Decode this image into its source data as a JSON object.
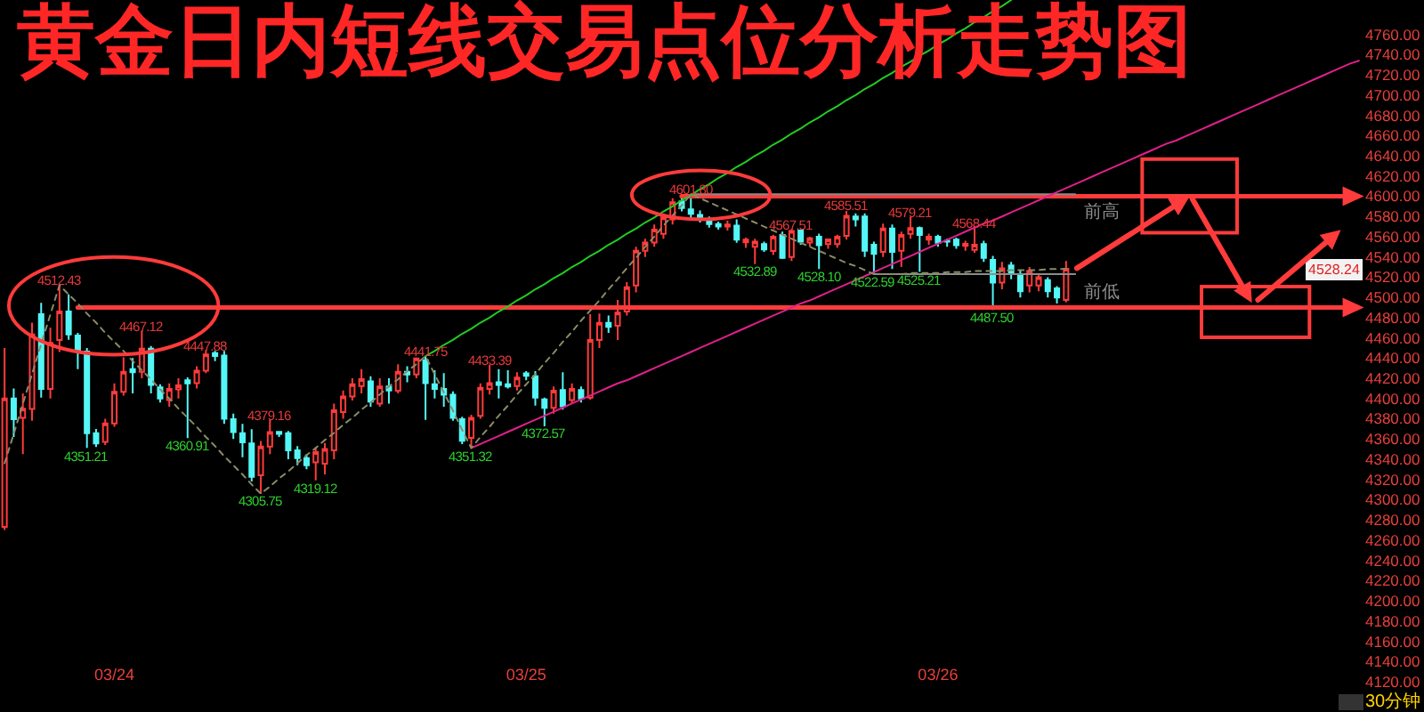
{
  "chart_data": {
    "type": "candlestick",
    "title": "黄金日内短线交易点位分析走势图",
    "categories": [
      null,
      null,
      null,
      null,
      null,
      null,
      null,
      null,
      null,
      null,
      null,
      null,
      "03/24",
      null,
      null,
      null,
      null,
      null,
      null,
      null,
      null,
      null,
      null,
      null,
      null,
      null,
      null,
      null,
      null,
      null,
      null,
      null,
      null,
      null,
      null,
      null,
      null,
      null,
      null,
      null,
      null,
      null,
      null,
      null,
      null,
      null,
      null,
      null,
      null,
      null,
      null,
      null,
      null,
      null,
      null,
      null,
      null,
      "03/25",
      null,
      null,
      null,
      null,
      null,
      null,
      null,
      null,
      null,
      null,
      null,
      null,
      null,
      null,
      null,
      null,
      null,
      null,
      null,
      null,
      null,
      null,
      null,
      null,
      null,
      null,
      null,
      null,
      null,
      null,
      null,
      null,
      null,
      null,
      null,
      null,
      null,
      null,
      null,
      null,
      null,
      null,
      null,
      null,
      "03/26",
      null,
      null,
      null,
      null,
      null,
      null,
      null,
      null,
      null,
      null,
      null,
      null,
      null,
      null,
      null,
      null,
      null,
      null,
      null,
      null,
      null,
      null,
      null,
      null,
      null,
      null,
      null,
      null,
      null,
      null,
      null,
      null,
      null,
      null,
      null,
      null,
      null,
      null,
      null,
      null,
      null,
      null,
      null,
      null,
      null,
      null
    ],
    "ohlc": [
      [
        4273,
        4450,
        4270,
        4400
      ],
      [
        4400,
        4410,
        4362,
        4379.5
      ],
      [
        4381,
        4405,
        4345,
        4390
      ],
      [
        4389.6,
        4475,
        4378,
        4463.4
      ],
      [
        4483.4,
        4494.6,
        4401,
        4409.4
      ],
      [
        4409.4,
        4470,
        4400,
        4455
      ],
      [
        4457.8,
        4512.43,
        4446,
        4486.1
      ],
      [
        4486,
        4503,
        4458,
        4463.4
      ],
      [
        4462.3,
        4465,
        4429,
        4447.6
      ],
      [
        4446.4,
        4450,
        4351.21,
        4365.8
      ],
      [
        4365.8,
        4370,
        4352,
        4355.5
      ],
      [
        4357.2,
        4380,
        4354,
        4375.3
      ],
      [
        4375.3,
        4415,
        4372,
        4406.7
      ],
      [
        4406.7,
        4440.7,
        4403,
        4426.5
      ],
      [
        4429,
        4440,
        4405,
        4426
      ],
      [
        4426.5,
        4467.12,
        4420,
        4449.3
      ],
      [
        4449.3,
        4452,
        4405,
        4413.5
      ],
      [
        4411,
        4414,
        4396,
        4400
      ],
      [
        4398.6,
        4415,
        4392,
        4409.4
      ],
      [
        4409,
        4420,
        4400,
        4413
      ],
      [
        4418,
        4421,
        4360.91,
        4415
      ],
      [
        4415.2,
        4432,
        4410,
        4427.6
      ],
      [
        4427.6,
        4447.88,
        4425,
        4443.5
      ],
      [
        4445,
        4447,
        4437,
        4442
      ],
      [
        4442.5,
        4447,
        4375,
        4380
      ],
      [
        4379.5,
        4385,
        4360,
        4366.8
      ],
      [
        4365.8,
        4375,
        4342,
        4356.6
      ],
      [
        4355.5,
        4369.7,
        4318,
        4322.5
      ],
      [
        4324.2,
        4358,
        4305.75,
        4352.6
      ],
      [
        4352.6,
        4379.16,
        4345,
        4366.8
      ],
      [
        4367,
        4368,
        4362,
        4365
      ],
      [
        4365.8,
        4368,
        4340,
        4348.7
      ],
      [
        4348.7,
        4353,
        4334,
        4341
      ],
      [
        4341,
        4345,
        4330,
        4334
      ],
      [
        4337,
        4352,
        4319.12,
        4347
      ],
      [
        4335.6,
        4356,
        4325,
        4350
      ],
      [
        4348.7,
        4395,
        4340,
        4388.4
      ],
      [
        4386.7,
        4408,
        4380,
        4402
      ],
      [
        4402,
        4420,
        4398,
        4414
      ],
      [
        4412.3,
        4429,
        4405,
        4419.1
      ],
      [
        4417,
        4422,
        4392,
        4397
      ],
      [
        4395,
        4420,
        4392,
        4412
      ],
      [
        4412,
        4420,
        4395,
        4408
      ],
      [
        4407.7,
        4434,
        4405,
        4426.5
      ],
      [
        4426.5,
        4432,
        4416,
        4423.7
      ],
      [
        4423.7,
        4440,
        4420,
        4439.6
      ],
      [
        4437.9,
        4441.75,
        4379,
        4415.2
      ],
      [
        4414,
        4428,
        4400,
        4409.5
      ],
      [
        4409.5,
        4425,
        4392,
        4403.8
      ],
      [
        4403.8,
        4407,
        4378,
        4381
      ],
      [
        4379.5,
        4382,
        4355,
        4358.3
      ],
      [
        4361.2,
        4384,
        4351.32,
        4381
      ],
      [
        4382.8,
        4415,
        4380,
        4410.6
      ],
      [
        4409.5,
        4433.39,
        4404,
        4415.2
      ],
      [
        4416,
        4429,
        4400,
        4413.5
      ],
      [
        4414,
        4428,
        4410,
        4412
      ],
      [
        4412.3,
        4426,
        4408,
        4420.8
      ],
      [
        4424.8,
        4427,
        4418,
        4422.5
      ],
      [
        4422,
        4427,
        4393,
        4401
      ],
      [
        4399.2,
        4401,
        4372.57,
        4390.7
      ],
      [
        4390.7,
        4412,
        4385,
        4407.8
      ],
      [
        4408.3,
        4426,
        4389,
        4392.4
      ],
      [
        4398.6,
        4415,
        4395,
        4409.5
      ],
      [
        4408.3,
        4412,
        4396,
        4400
      ],
      [
        4401,
        4483.4,
        4399,
        4457.8
      ],
      [
        4457.8,
        4484,
        4450,
        4474.9
      ],
      [
        4474.9,
        4482,
        4465,
        4470.8
      ],
      [
        4471.9,
        4497.5,
        4457.8,
        4485
      ],
      [
        4486,
        4515,
        4482,
        4510
      ],
      [
        4511.7,
        4550,
        4505,
        4546
      ],
      [
        4546,
        4558,
        4540,
        4554.3
      ],
      [
        4554.3,
        4572,
        4550,
        4567
      ],
      [
        4562.8,
        4583,
        4558,
        4579
      ],
      [
        4577,
        4598,
        4572,
        4594
      ],
      [
        4595,
        4600,
        4585,
        4588.4
      ],
      [
        4587,
        4601.8,
        4578,
        4582.7
      ],
      [
        4581.6,
        4586,
        4574,
        4577
      ],
      [
        4577,
        4580,
        4569,
        4572.5
      ],
      [
        4572.5,
        4575,
        4567,
        4570
      ],
      [
        4570,
        4576,
        4566,
        4572
      ],
      [
        4571,
        4577,
        4554,
        4557
      ],
      [
        4554.5,
        4559,
        4549,
        4557
      ],
      [
        4550,
        4558,
        4532.89,
        4555
      ],
      [
        4552.6,
        4555,
        4545,
        4547.5
      ],
      [
        4545.8,
        4562,
        4542,
        4560
      ],
      [
        4561.8,
        4565,
        4538,
        4539
      ],
      [
        4540,
        4567.51,
        4536,
        4565.7
      ],
      [
        4566,
        4567,
        4552,
        4555
      ],
      [
        4554.3,
        4560,
        4550,
        4558.4
      ],
      [
        4560,
        4563,
        4528.1,
        4551.5
      ],
      [
        4552.6,
        4558,
        4548,
        4557.2
      ],
      [
        4552.6,
        4562,
        4549,
        4560
      ],
      [
        4560.8,
        4585.51,
        4557,
        4580.6
      ],
      [
        4580,
        4583,
        4570,
        4577
      ],
      [
        4580,
        4583,
        4540,
        4546
      ],
      [
        4552,
        4555,
        4522.59,
        4543
      ],
      [
        4545,
        4573,
        4540,
        4568
      ],
      [
        4568,
        4572,
        4528,
        4545
      ],
      [
        4546,
        4565,
        4530,
        4561.8
      ],
      [
        4562.8,
        4579.21,
        4558,
        4568.6
      ],
      [
        4568.6,
        4570,
        4525.21,
        4561.8
      ],
      [
        4557,
        4563,
        4552,
        4560
      ],
      [
        4560,
        4562,
        4550,
        4554
      ],
      [
        4556,
        4558,
        4550,
        4555
      ],
      [
        4557,
        4559,
        4548,
        4551.5
      ],
      [
        4551,
        4556,
        4546,
        4553
      ],
      [
        4547,
        4568.44,
        4544,
        4552
      ],
      [
        4552.6,
        4556,
        4535,
        4539
      ],
      [
        4537,
        4541,
        4487.5,
        4514.6
      ],
      [
        4514.6,
        4535,
        4508,
        4528.7
      ],
      [
        4531.6,
        4535,
        4518,
        4523
      ],
      [
        4523,
        4527,
        4500,
        4506
      ],
      [
        4511.7,
        4530,
        4505,
        4526
      ],
      [
        4511.7,
        4522,
        4506,
        4520
      ],
      [
        4517,
        4520,
        4500,
        4506
      ],
      [
        4509,
        4511,
        4494,
        4500
      ],
      [
        4497.5,
        4536,
        4495,
        4528.24
      ],
      null,
      null,
      null,
      null,
      null,
      null,
      null,
      null,
      null,
      null,
      null,
      null,
      null,
      null,
      null,
      null,
      null,
      null,
      null,
      null,
      null,
      null,
      null,
      null,
      null,
      null,
      null,
      null,
      null,
      null,
      null,
      null
    ],
    "value_labels": [
      null,
      null,
      null,
      null,
      null,
      null,
      "4512.43",
      null,
      null,
      "4351.21",
      null,
      null,
      null,
      null,
      null,
      "4467.12",
      null,
      null,
      null,
      null,
      "4360.91",
      null,
      "4447.88",
      null,
      null,
      null,
      null,
      null,
      "4305.75",
      "4379.16",
      null,
      null,
      null,
      null,
      "4319.12",
      null,
      null,
      null,
      null,
      null,
      null,
      null,
      null,
      null,
      null,
      null,
      "4441.75",
      null,
      null,
      null,
      null,
      "4351.32",
      null,
      "4433.39",
      null,
      null,
      null,
      null,
      null,
      "4372.57",
      null,
      null,
      null,
      null,
      null,
      null,
      null,
      null,
      null,
      null,
      null,
      null,
      null,
      null,
      null,
      "4601.80",
      null,
      null,
      null,
      null,
      null,
      null,
      "4532.89",
      null,
      null,
      null,
      "4567.51",
      null,
      null,
      "4528.10",
      null,
      null,
      "4585.51",
      null,
      null,
      "4522.59",
      null,
      null,
      null,
      "4579.21",
      "4525.21",
      null,
      null,
      null,
      null,
      null,
      "4568.44",
      null,
      "4487.50",
      null,
      null,
      null,
      null,
      null,
      null,
      null,
      null,
      null,
      null,
      null,
      null,
      null,
      null,
      null,
      null,
      null,
      null,
      null,
      null,
      null,
      null,
      null,
      null,
      null,
      null,
      null,
      null,
      null,
      null,
      null,
      null,
      null,
      null,
      null,
      null,
      null,
      null,
      null,
      null
    ],
    "series": [
      {
        "type": "line",
        "color": "#ff3b3b",
        "values": [
          null,
          null,
          null,
          null,
          null,
          null,
          null,
          null,
          null,
          null,
          null,
          null,
          null,
          null,
          null,
          null,
          null,
          null,
          null,
          null,
          null,
          null,
          null,
          null,
          null,
          null,
          null,
          null,
          null,
          null,
          null,
          null,
          null,
          null,
          null,
          null,
          null,
          null,
          null,
          null,
          null,
          null,
          null,
          null,
          null,
          null,
          null,
          null,
          null,
          null,
          null,
          null,
          null,
          null,
          null,
          null,
          null,
          null,
          null,
          null,
          null,
          null,
          null,
          null,
          null,
          null,
          null,
          null,
          null,
          null,
          null,
          null,
          null,
          null,
          4600,
          4600,
          4600,
          4600,
          4600,
          4600,
          4600,
          4600,
          4600,
          4600,
          4600,
          4600,
          4600,
          4600,
          4600,
          4600,
          4600,
          4600,
          4600,
          4600,
          4600,
          4600,
          4600,
          4600,
          4600,
          4600,
          4600,
          4600,
          4600,
          4600,
          4600,
          4600,
          4600,
          4600,
          4600,
          4600,
          4600,
          4600,
          4600,
          4600,
          4600,
          4600,
          4600,
          4600,
          4600,
          4600,
          4600,
          4600,
          4600,
          4600,
          4600,
          4600,
          4600,
          4600,
          4600,
          4600,
          4600,
          4600,
          4600,
          4600,
          4600,
          4600,
          4600,
          4600,
          4600,
          4600,
          4600,
          4600,
          4600,
          4600,
          4600,
          4600,
          4600,
          4600,
          null
        ]
      },
      {
        "type": "line",
        "color": "#ff3b3b",
        "values": [
          null,
          null,
          null,
          null,
          null,
          null,
          null,
          null,
          4490,
          4490,
          4490,
          4490,
          4490,
          4490,
          4490,
          4490,
          4490,
          4490,
          4490,
          4490,
          4490,
          4490,
          4490,
          4490,
          4490,
          4490,
          4490,
          4490,
          4490,
          4490,
          4490,
          4490,
          4490,
          4490,
          4490,
          4490,
          4490,
          4490,
          4490,
          4490,
          4490,
          4490,
          4490,
          4490,
          4490,
          4490,
          4490,
          4490,
          4490,
          4490,
          4490,
          4490,
          4490,
          4490,
          4490,
          4490,
          4490,
          4490,
          4490,
          4490,
          4490,
          4490,
          4490,
          4490,
          4490,
          4490,
          4490,
          4490,
          4490,
          4490,
          4490,
          4490,
          4490,
          4490,
          4490,
          4490,
          4490,
          4490,
          4490,
          4490,
          4490,
          4490,
          4490,
          4490,
          4490,
          4490,
          4490,
          4490,
          4490,
          4490,
          4490,
          4490,
          4490,
          4490,
          4490,
          4490,
          4490,
          4490,
          4490,
          4490,
          4490,
          4490,
          4490,
          4490,
          4490,
          4490,
          4490,
          4490,
          4490,
          4490,
          4490,
          4490,
          4490,
          4490,
          4490,
          4490,
          4490,
          4490,
          4490,
          4490,
          4490,
          4490,
          4490,
          4490,
          4490,
          4490,
          4490,
          4490,
          4490,
          4490,
          4490,
          4490,
          4490,
          4490,
          4490,
          4490,
          4490,
          4490,
          4490,
          4490,
          4490,
          4490,
          4490,
          4490,
          4490,
          4490,
          4490,
          4490,
          null
        ]
      },
      {
        "type": "line",
        "name": "前高",
        "color": "#8c8c8c",
        "values": [
          null,
          null,
          null,
          null,
          null,
          null,
          null,
          null,
          null,
          null,
          null,
          null,
          null,
          null,
          null,
          null,
          null,
          null,
          null,
          null,
          null,
          null,
          null,
          null,
          null,
          null,
          null,
          null,
          null,
          null,
          null,
          null,
          null,
          null,
          null,
          null,
          null,
          null,
          null,
          null,
          null,
          null,
          null,
          null,
          null,
          null,
          null,
          null,
          null,
          null,
          null,
          null,
          null,
          null,
          null,
          null,
          null,
          null,
          null,
          null,
          null,
          null,
          null,
          null,
          null,
          null,
          null,
          null,
          null,
          null,
          null,
          null,
          null,
          null,
          null,
          4602,
          4602,
          4602,
          4602,
          4602,
          4602,
          4602,
          4602,
          4602,
          4602,
          4602,
          4602,
          4602,
          4602,
          4602,
          4602,
          4602,
          4602,
          4602,
          4602,
          4602,
          4602,
          4602,
          4602,
          4602,
          4602,
          4602,
          4602,
          4602,
          4602,
          4602,
          4602,
          4602,
          4602,
          4602,
          4602,
          4602,
          4602,
          4602,
          4602,
          4602,
          4602,
          4602,
          null,
          null,
          null,
          null,
          null,
          null,
          null,
          null,
          null,
          null,
          null,
          null,
          null,
          null,
          null,
          null,
          null,
          null,
          null,
          null,
          null,
          null,
          null,
          null,
          null,
          null,
          null,
          null,
          null,
          null,
          null
        ]
      },
      {
        "type": "line",
        "name": "前低",
        "color": "#8c8c8c",
        "values": [
          null,
          null,
          null,
          null,
          null,
          null,
          null,
          null,
          null,
          null,
          null,
          null,
          null,
          null,
          null,
          null,
          null,
          null,
          null,
          null,
          null,
          null,
          null,
          null,
          null,
          null,
          null,
          null,
          null,
          null,
          null,
          null,
          null,
          null,
          null,
          null,
          null,
          null,
          null,
          null,
          null,
          null,
          null,
          null,
          null,
          null,
          null,
          null,
          null,
          null,
          null,
          null,
          null,
          null,
          null,
          null,
          null,
          null,
          null,
          null,
          null,
          null,
          null,
          null,
          null,
          null,
          null,
          null,
          null,
          null,
          null,
          null,
          null,
          null,
          null,
          null,
          null,
          null,
          null,
          null,
          null,
          null,
          null,
          null,
          null,
          null,
          null,
          null,
          null,
          null,
          null,
          null,
          null,
          null,
          null,
          4523,
          4523,
          4523,
          4523,
          4523,
          4523,
          4523,
          4523,
          4523,
          4523,
          4523,
          4523,
          4523,
          4523,
          4523,
          4523,
          4523,
          4523,
          4523,
          4523,
          4523,
          4523,
          4523,
          null,
          null,
          null,
          null,
          null,
          null,
          null,
          null,
          null,
          null,
          null,
          null,
          null,
          null,
          null,
          null,
          null,
          null,
          null,
          null,
          null,
          null,
          null,
          null,
          null,
          null,
          null,
          null,
          null,
          null,
          null
        ]
      },
      {
        "type": "line",
        "color": "#22cc22",
        "values": [
          null,
          null,
          null,
          null,
          null,
          null,
          null,
          null,
          null,
          null,
          null,
          null,
          null,
          null,
          null,
          null,
          null,
          null,
          null,
          null,
          null,
          null,
          null,
          null,
          null,
          null,
          null,
          null,
          null,
          null,
          null,
          null,
          null,
          null,
          null,
          null,
          null,
          null,
          null,
          null,
          null,
          null,
          null,
          null,
          null,
          null,
          4442,
          4447,
          4453,
          4458,
          4464,
          4469,
          4475,
          4480,
          4486,
          4491,
          4497,
          4502,
          4508,
          4513,
          4519,
          4524,
          4530,
          4535,
          4541,
          4546,
          4552,
          4557,
          4563,
          4568,
          4574,
          4579,
          4585,
          4590,
          4596,
          4601,
          4607,
          4612,
          4618,
          4623,
          4629,
          4634,
          4640,
          4645,
          4651,
          4656,
          4662,
          4667,
          4673,
          4678,
          4684,
          4689,
          4695,
          4700,
          4706,
          4711,
          4717,
          4722,
          4728,
          4733,
          4739,
          4744,
          4750,
          4755,
          4761,
          4766,
          4772,
          4777,
          4783,
          4788,
          4794,
          null,
          null,
          null,
          null,
          null,
          null,
          null,
          null,
          null,
          null,
          null,
          null,
          null,
          null,
          null,
          null,
          null,
          null,
          null,
          null,
          null,
          null,
          null,
          null,
          null,
          null,
          null,
          null,
          null,
          null,
          null,
          null,
          null,
          null,
          null,
          null,
          null,
          null
        ]
      },
      {
        "type": "line",
        "color": "#e0208c",
        "values": [
          null,
          null,
          null,
          null,
          null,
          null,
          null,
          null,
          null,
          null,
          null,
          null,
          null,
          null,
          null,
          null,
          null,
          null,
          null,
          null,
          null,
          null,
          null,
          null,
          null,
          null,
          null,
          null,
          null,
          null,
          null,
          null,
          null,
          null,
          null,
          null,
          null,
          null,
          null,
          null,
          null,
          null,
          null,
          null,
          null,
          null,
          null,
          null,
          null,
          null,
          null,
          4351,
          4355,
          4359,
          4363,
          4367,
          4371,
          4375,
          4379,
          4383,
          4387,
          4391,
          4395,
          4399,
          4403,
          4407,
          4411,
          4415,
          4418,
          4422,
          4426,
          4430,
          4434,
          4438,
          4442,
          4446,
          4450,
          4454,
          4458,
          4462,
          4466,
          4470,
          4474,
          4478,
          4482,
          4486,
          4490,
          4494,
          4497,
          4501,
          4505,
          4509,
          4513,
          4517,
          4521,
          4525,
          4529,
          4533,
          4537,
          4541,
          4545,
          4549,
          4553,
          4557,
          4561,
          4565,
          4569,
          4573,
          4576,
          4580,
          4584,
          4588,
          4592,
          4596,
          4600,
          4604,
          4608,
          4612,
          4616,
          4620,
          4624,
          4628,
          4632,
          4636,
          4640,
          4644,
          4648,
          4652,
          4655,
          4659,
          4663,
          4667,
          4671,
          4675,
          4679,
          4683,
          4687,
          4691,
          4695,
          4699,
          4703,
          4707,
          4711,
          4715,
          4719,
          4723,
          4727,
          4731,
          4734
        ]
      },
      {
        "type": "line",
        "color": "#8a8a66",
        "line_style": "dotted",
        "values": [
          4336,
          4365,
          4395,
          4424,
          4454,
          4483,
          4512,
          4503,
          4494,
          4484,
          4475,
          4465,
          4456,
          4447,
          4437,
          4428,
          4419,
          4409,
          4400,
          4390,
          4381,
          4372,
          4362,
          4353,
          4343,
          4334,
          4325,
          4315,
          4306,
          4313,
          4321,
          4328,
          4336,
          4344,
          4351,
          4359,
          4366,
          4374,
          4381,
          4389,
          4396,
          4404,
          4412,
          4419,
          4427,
          4434,
          4442,
          4424,
          4406,
          4388,
          4369,
          4351,
          4362,
          4372,
          4383,
          4393,
          4404,
          4414,
          4424,
          4435,
          4445,
          4456,
          4466,
          4477,
          4487,
          4497,
          4508,
          4518,
          4529,
          4539,
          4550,
          4560,
          4571,
          4581,
          4591,
          4602,
          4598,
          4594,
          4590,
          4586,
          4582,
          4578,
          4574,
          4570,
          4566,
          4562,
          4558,
          4554,
          4550,
          4546,
          4542,
          4538,
          4534,
          4531,
          4527,
          4523,
          4523,
          4523,
          4523,
          4524,
          4524,
          4524,
          4524,
          4525,
          4525,
          4525,
          4526,
          4526,
          4526,
          4526,
          4527,
          4527,
          4527,
          4527,
          4528,
          4528,
          4528,
          null,
          null,
          null,
          null,
          null,
          null,
          null,
          null,
          null,
          null,
          null,
          null,
          null,
          null,
          null,
          null,
          null,
          null,
          null,
          null,
          null,
          null,
          null,
          null,
          null,
          null,
          null,
          null,
          null,
          null,
          null,
          null
        ]
      }
    ],
    "ylim": [
      4120,
      4794
    ],
    "yticks": [
      {
        "value": 4120,
        "label": "4120.00"
      },
      {
        "value": 4140,
        "label": "4140.00"
      },
      {
        "value": 4160,
        "label": "4160.00"
      },
      {
        "value": 4180,
        "label": "4180.00"
      },
      {
        "value": 4200,
        "label": "4200.00"
      },
      {
        "value": 4220,
        "label": "4220.00"
      },
      {
        "value": 4240,
        "label": "4240.00"
      },
      {
        "value": 4260,
        "label": "4260.00"
      },
      {
        "value": 4280,
        "label": "4280.00"
      },
      {
        "value": 4300,
        "label": "4300.00"
      },
      {
        "value": 4320,
        "label": "4320.00"
      },
      {
        "value": 4340,
        "label": "4340.00"
      },
      {
        "value": 4360,
        "label": "4360.00"
      },
      {
        "value": 4380,
        "label": "4380.00"
      },
      {
        "value": 4400,
        "label": "4400.00"
      },
      {
        "value": 4420,
        "label": "4420.00"
      },
      {
        "value": 4440,
        "label": "4440.00"
      },
      {
        "value": 4460,
        "label": "4460.00"
      },
      {
        "value": 4480,
        "label": "4480.00"
      },
      {
        "value": 4500,
        "label": "4500.00"
      },
      {
        "value": 4520,
        "label": "4520.00"
      },
      {
        "value": 4540,
        "label": "4540.00"
      },
      {
        "value": 4560,
        "label": "4560.00"
      },
      {
        "value": 4580,
        "label": "4580.00"
      },
      {
        "value": 4600,
        "label": "4600.00"
      },
      {
        "value": 4620,
        "label": "4620.00"
      },
      {
        "value": 4640,
        "label": "4640.00"
      },
      {
        "value": 4660,
        "label": "4660.00"
      },
      {
        "value": 4680,
        "label": "4680.00"
      },
      {
        "value": 4700,
        "label": "4700.00"
      },
      {
        "value": 4720,
        "label": "4720.00"
      },
      {
        "value": 4740,
        "label": "4740.00"
      },
      {
        "value": 4760,
        "label": "4760.00"
      }
    ],
    "annotations": [
      "30分钟",
      {
        "text": "4528.24",
        "y": 4528.24
      }
    ]
  }
}
